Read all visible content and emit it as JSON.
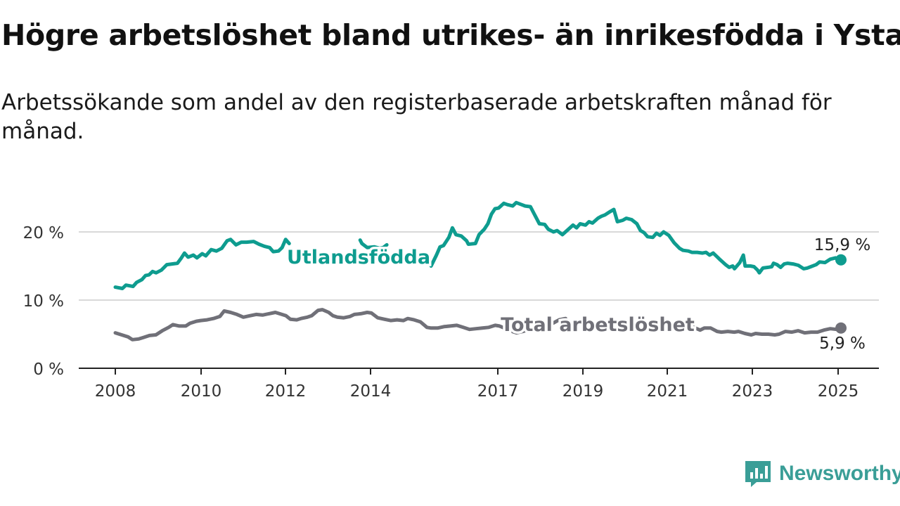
{
  "header": {
    "title": "Högre arbetslöshet bland utrikes- än inrikesfödda i Ystad",
    "subtitle": "Arbetssökande som andel av den registerbaserade arbetskraften månad för månad."
  },
  "brand": {
    "name": "Newsworthy",
    "icon": "newsworthy-logo-icon",
    "color": "#3a9e97"
  },
  "chart_data": {
    "type": "line",
    "x_ticks": [
      "2008",
      "2010",
      "2012",
      "2014",
      "2017",
      "2019",
      "2021",
      "2023",
      "2025"
    ],
    "x_range": [
      2008.0,
      2025.1
    ],
    "y_ticks": [
      "0 %",
      "10 %",
      "20 %"
    ],
    "y_tick_values": [
      0,
      10,
      20
    ],
    "ylim": [
      0,
      25
    ],
    "grid": "horizontal",
    "series": [
      {
        "name": "Utlandsfödda",
        "color": "#0e9c8f",
        "end_label": "15,9 %",
        "points": [
          [
            2008.0,
            11.9
          ],
          [
            2008.2,
            11.7
          ],
          [
            2008.3,
            12.2
          ],
          [
            2008.5,
            12.0
          ],
          [
            2008.6,
            12.6
          ],
          [
            2008.75,
            13.0
          ],
          [
            2008.85,
            13.6
          ],
          [
            2008.95,
            13.7
          ],
          [
            2009.05,
            14.2
          ],
          [
            2009.15,
            14.0
          ],
          [
            2009.3,
            14.4
          ],
          [
            2009.45,
            15.2
          ],
          [
            2009.6,
            15.3
          ],
          [
            2009.75,
            15.4
          ],
          [
            2009.85,
            16.1
          ],
          [
            2009.95,
            16.9
          ],
          [
            2010.05,
            16.3
          ],
          [
            2010.2,
            16.6
          ],
          [
            2010.3,
            16.2
          ],
          [
            2010.45,
            16.8
          ],
          [
            2010.55,
            16.5
          ],
          [
            2010.7,
            17.4
          ],
          [
            2010.85,
            17.2
          ],
          [
            2011.0,
            17.6
          ],
          [
            2011.15,
            18.7
          ],
          [
            2011.25,
            18.9
          ],
          [
            2011.4,
            18.1
          ],
          [
            2011.55,
            18.5
          ],
          [
            2011.7,
            18.5
          ],
          [
            2011.9,
            18.6
          ],
          [
            2012.05,
            18.2
          ],
          [
            2012.2,
            17.9
          ],
          [
            2012.35,
            17.7
          ],
          [
            2012.45,
            17.1
          ],
          [
            2012.6,
            17.2
          ],
          [
            2012.7,
            17.7
          ],
          [
            2012.8,
            18.9
          ],
          [
            2012.9,
            18.3
          ],
          null,
          [
            2014.9,
            18.8
          ],
          [
            2014.95,
            18.3
          ],
          [
            2015.1,
            17.7
          ],
          [
            2015.3,
            17.8
          ],
          [
            2015.45,
            17.6
          ],
          [
            2015.55,
            17.7
          ],
          [
            2015.65,
            18.1
          ],
          null,
          [
            2015.9,
            15.8
          ],
          [
            2015.95,
            16.0
          ],
          null,
          [
            2016.9,
            15.0
          ],
          [
            2017.05,
            16.6
          ],
          [
            2017.15,
            17.8
          ],
          [
            2017.25,
            18.0
          ],
          [
            2017.4,
            19.2
          ],
          [
            2017.5,
            20.6
          ],
          [
            2017.6,
            19.6
          ],
          [
            2017.75,
            19.4
          ],
          [
            2017.9,
            18.7
          ],
          [
            2017.95,
            18.2
          ],
          [
            2018.15,
            18.3
          ],
          [
            2018.25,
            19.6
          ],
          [
            2018.4,
            20.4
          ],
          [
            2018.5,
            21.2
          ],
          [
            2018.6,
            22.6
          ],
          [
            2018.7,
            23.4
          ],
          [
            2018.8,
            23.5
          ],
          [
            2018.95,
            24.2
          ],
          [
            2019.05,
            24.0
          ],
          [
            2019.2,
            23.8
          ],
          [
            2019.3,
            24.3
          ],
          [
            2019.45,
            24.0
          ],
          [
            2019.55,
            23.8
          ],
          [
            2019.7,
            23.7
          ],
          [
            2019.85,
            22.2
          ],
          [
            2019.95,
            21.2
          ],
          [
            2020.1,
            21.1
          ],
          [
            2020.2,
            20.4
          ],
          [
            2020.35,
            20.0
          ],
          [
            2020.45,
            20.2
          ],
          [
            2020.6,
            19.6
          ],
          [
            2020.75,
            20.3
          ],
          [
            2020.9,
            21.0
          ],
          [
            2021.0,
            20.6
          ],
          [
            2021.1,
            21.2
          ],
          [
            2021.25,
            21.0
          ],
          [
            2021.35,
            21.5
          ],
          [
            2021.45,
            21.3
          ],
          [
            2021.6,
            22.0
          ],
          [
            2021.7,
            22.3
          ],
          [
            2021.8,
            22.5
          ],
          [
            2021.95,
            23.0
          ],
          [
            2022.05,
            23.3
          ],
          [
            2022.15,
            21.5
          ],
          [
            2022.3,
            21.7
          ],
          [
            2022.4,
            22.0
          ],
          [
            2022.55,
            21.8
          ],
          [
            2022.7,
            21.2
          ],
          [
            2022.8,
            20.2
          ],
          [
            2022.9,
            19.9
          ],
          [
            2023.0,
            19.3
          ],
          [
            2023.15,
            19.2
          ],
          [
            2023.25,
            19.8
          ],
          [
            2023.35,
            19.5
          ],
          [
            2023.45,
            20.0
          ],
          [
            2023.6,
            19.5
          ],
          [
            2023.75,
            18.4
          ],
          [
            2023.9,
            17.6
          ],
          [
            2024.0,
            17.3
          ],
          [
            2024.15,
            17.2
          ],
          [
            2024.25,
            17.0
          ],
          [
            2024.4,
            17.0
          ],
          [
            2024.55,
            16.9
          ],
          [
            2024.65,
            17.0
          ],
          [
            2024.75,
            16.6
          ],
          [
            2024.85,
            16.9
          ],
          [
            2024.95,
            16.4
          ],
          [
            2025.05,
            15.9
          ],
          [
            2025.2,
            15.2
          ],
          [
            2025.3,
            14.8
          ],
          [
            2025.4,
            15.0
          ],
          [
            2025.45,
            14.6
          ],
          [
            2025.6,
            15.5
          ],
          [
            2025.7,
            16.6
          ],
          [
            2025.75,
            15.0
          ],
          [
            2025.9,
            15.0
          ],
          [
            2026.0,
            14.9
          ],
          [
            2026.1,
            14.4
          ],
          [
            2026.15,
            14.0
          ],
          [
            2026.25,
            14.7
          ],
          [
            2026.4,
            14.8
          ],
          [
            2026.5,
            14.9
          ],
          [
            2026.55,
            15.4
          ],
          [
            2026.65,
            15.2
          ],
          [
            2026.75,
            14.8
          ],
          [
            2026.85,
            15.3
          ],
          [
            2026.95,
            15.4
          ],
          [
            2027.1,
            15.3
          ],
          [
            2027.25,
            15.1
          ],
          [
            2027.4,
            14.6
          ],
          [
            2027.5,
            14.7
          ],
          [
            2027.6,
            14.9
          ],
          [
            2027.75,
            15.2
          ],
          [
            2027.85,
            15.6
          ],
          [
            2028.0,
            15.5
          ],
          [
            2028.15,
            16.0
          ],
          [
            2028.3,
            16.2
          ],
          [
            2028.45,
            15.9
          ]
        ]
      },
      {
        "name": "Total arbetslöshet",
        "color": "#707078",
        "end_label": "5,9 %",
        "points": [
          [
            2008.0,
            5.2
          ],
          [
            2008.15,
            4.9
          ],
          [
            2008.3,
            4.6
          ],
          [
            2008.4,
            4.2
          ],
          [
            2008.55,
            4.3
          ],
          [
            2008.65,
            4.5
          ],
          [
            2008.8,
            4.8
          ],
          [
            2008.95,
            4.9
          ],
          [
            2009.1,
            5.5
          ],
          [
            2009.25,
            6.0
          ],
          [
            2009.35,
            6.4
          ],
          [
            2009.5,
            6.2
          ],
          [
            2009.65,
            6.2
          ],
          [
            2009.75,
            6.6
          ],
          [
            2009.9,
            6.9
          ],
          [
            2010.0,
            7.0
          ],
          [
            2010.15,
            7.1
          ],
          [
            2010.3,
            7.3
          ],
          [
            2010.45,
            7.6
          ],
          [
            2010.55,
            8.4
          ],
          [
            2010.7,
            8.2
          ],
          [
            2010.85,
            7.9
          ],
          [
            2011.0,
            7.5
          ],
          [
            2011.15,
            7.7
          ],
          [
            2011.3,
            7.9
          ],
          [
            2011.45,
            7.8
          ],
          [
            2011.6,
            8.0
          ],
          [
            2011.75,
            8.2
          ],
          [
            2011.85,
            8.0
          ],
          [
            2012.0,
            7.7
          ],
          [
            2012.1,
            7.2
          ],
          [
            2012.25,
            7.1
          ],
          [
            2012.35,
            7.3
          ],
          [
            2012.5,
            7.5
          ],
          [
            2012.6,
            7.7
          ],
          [
            2012.75,
            8.5
          ],
          [
            2012.85,
            8.6
          ],
          [
            2013.0,
            8.2
          ],
          [
            2013.1,
            7.7
          ],
          [
            2013.2,
            7.5
          ],
          [
            2013.35,
            7.4
          ],
          [
            2013.5,
            7.6
          ],
          [
            2013.6,
            7.9
          ],
          [
            2013.75,
            8.0
          ],
          [
            2013.9,
            8.2
          ],
          [
            2014.0,
            8.1
          ],
          [
            2014.15,
            7.4
          ],
          [
            2014.3,
            7.2
          ],
          [
            2014.45,
            7.0
          ],
          [
            2014.6,
            7.1
          ],
          [
            2014.75,
            7.0
          ],
          [
            2014.85,
            7.3
          ],
          [
            2015.0,
            7.1
          ],
          [
            2015.15,
            6.8
          ],
          [
            2015.3,
            6.0
          ],
          [
            2015.4,
            5.9
          ],
          [
            2015.55,
            5.9
          ],
          [
            2015.7,
            6.1
          ],
          [
            2015.85,
            6.2
          ],
          [
            2016.0,
            6.3
          ],
          [
            2016.15,
            6.0
          ],
          [
            2016.3,
            5.7
          ],
          [
            2016.45,
            5.8
          ],
          [
            2016.6,
            5.9
          ],
          [
            2016.75,
            6.0
          ],
          [
            2016.9,
            6.3
          ],
          [
            2017.0,
            6.2
          ],
          [
            2017.15,
            5.8
          ],
          [
            2017.25,
            5.5
          ],
          [
            2017.4,
            5.2
          ],
          [
            2017.55,
            5.4
          ],
          [
            2017.65,
            5.6
          ],
          [
            2017.8,
            5.9
          ],
          [
            2017.95,
            6.0
          ],
          [
            2018.1,
            6.2
          ],
          [
            2018.25,
            6.6
          ],
          [
            2018.4,
            7.1
          ],
          [
            2018.55,
            7.3
          ],
          null,
          [
            2021.4,
            6.3
          ],
          [
            2021.45,
            6.4
          ],
          [
            2021.55,
            6.0
          ],
          [
            2021.7,
            5.6
          ],
          [
            2021.8,
            5.9
          ],
          [
            2021.95,
            5.9
          ],
          [
            2022.1,
            5.4
          ],
          [
            2022.2,
            5.3
          ],
          [
            2022.35,
            5.4
          ],
          [
            2022.5,
            5.3
          ],
          [
            2022.6,
            5.4
          ],
          [
            2022.75,
            5.1
          ],
          [
            2022.9,
            4.9
          ],
          [
            2023.0,
            5.1
          ],
          [
            2023.15,
            5.0
          ],
          [
            2023.3,
            5.0
          ],
          [
            2023.45,
            4.9
          ],
          [
            2023.55,
            5.0
          ],
          [
            2023.7,
            5.4
          ],
          [
            2023.85,
            5.3
          ],
          [
            2024.0,
            5.5
          ],
          [
            2024.15,
            5.2
          ],
          [
            2024.3,
            5.3
          ],
          [
            2024.45,
            5.3
          ],
          [
            2024.6,
            5.6
          ],
          [
            2024.75,
            5.8
          ],
          [
            2024.9,
            5.7
          ],
          [
            2025.0,
            5.9
          ]
        ]
      }
    ]
  }
}
